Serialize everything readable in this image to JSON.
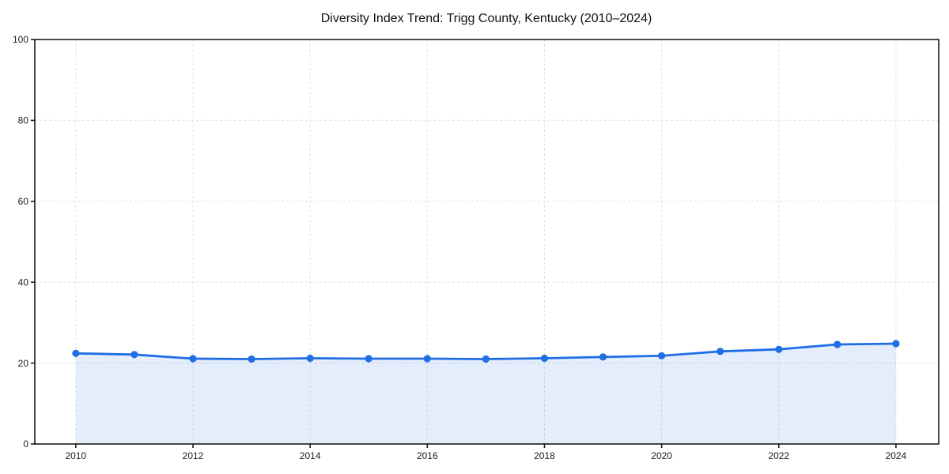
{
  "figure": {
    "title": "Diversity Index Trend: Trigg County, Kentucky (2010–2024)"
  },
  "chart_data": {
    "type": "line",
    "title": "Diversity Index Trend: Trigg County, Kentucky (2010–2024)",
    "xlabel": "",
    "ylabel": "",
    "x": [
      2010,
      2011,
      2012,
      2013,
      2014,
      2015,
      2016,
      2017,
      2018,
      2019,
      2020,
      2021,
      2022,
      2023,
      2024
    ],
    "series": [
      {
        "name": "Diversity Index",
        "values": [
          22.4,
          22.1,
          21.1,
          21.0,
          21.2,
          21.1,
          21.1,
          21.0,
          21.2,
          21.5,
          21.8,
          22.9,
          23.4,
          24.6,
          24.8
        ]
      }
    ],
    "xticks": [
      2010,
      2012,
      2014,
      2016,
      2018,
      2020,
      2022,
      2024
    ],
    "yticks": [
      0,
      20,
      40,
      60,
      80,
      100
    ],
    "xlim": [
      2009.3,
      2024.73
    ],
    "ylim": [
      0,
      100
    ],
    "grid": true,
    "grid_style": "dashed",
    "legend": false,
    "marker": "circle",
    "area_fill": true,
    "colors": {
      "line": "#1f6ee5",
      "marker": "#1f6ee5",
      "area": "rgba(31,110,229,0.12)",
      "grid": "#e0e0e0",
      "spine": "#1a1a1a",
      "tick_label": "#1c1c1c",
      "title": "#111111",
      "background": "#ffffff"
    }
  }
}
